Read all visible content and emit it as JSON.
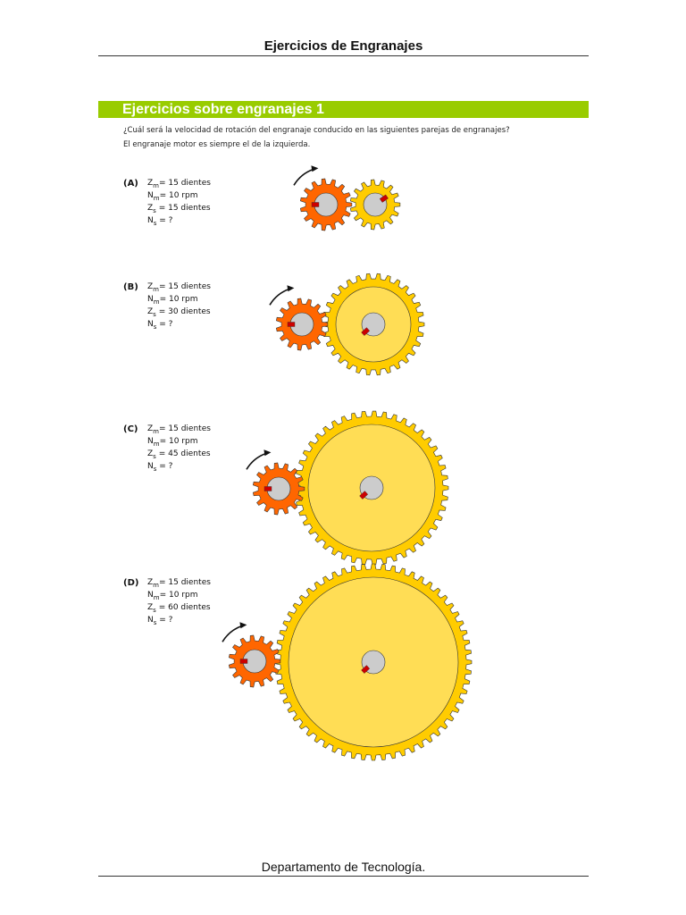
{
  "header": {
    "title": "Ejercicios de Engranajes"
  },
  "section": {
    "title": "Ejercicios sobre engranajes 1"
  },
  "question": [
    "¿Cuál será la velocidad de rotación del engranaje conducido en las siguientes parejas de engranajes?",
    "El engranaje motor es siempre el de la izquierda."
  ],
  "exercises": [
    {
      "label": "(A)",
      "zm": "= 15 dientes",
      "nm": "= 10 rpm",
      "zs": " = 15 dientes",
      "ns": " =  ?",
      "driver_teeth": 15,
      "driven_teeth": 15
    },
    {
      "label": "(B)",
      "zm": "= 15 dientes",
      "nm": "= 10 rpm",
      "zs": " = 30 dientes",
      "ns": " =  ?",
      "driver_teeth": 15,
      "driven_teeth": 30
    },
    {
      "label": "(C)",
      "zm": "= 15 dientes",
      "nm": "= 10 rpm",
      "zs": " = 45 dientes",
      "ns": " =  ?",
      "driver_teeth": 15,
      "driven_teeth": 45
    },
    {
      "label": "(D)",
      "zm": "= 15 dientes",
      "nm": "= 10 rpm",
      "zs": " = 60 dientes",
      "ns": " =  ?",
      "driver_teeth": 15,
      "driven_teeth": 60
    }
  ],
  "symbols": {
    "Z": "Z",
    "N": "N",
    "m": "m",
    "s": "s"
  },
  "colors": {
    "band": "#99cc00",
    "driver": "#ff6600",
    "driven": "#ffcc00",
    "driven_inner": "#ffdd55",
    "hub": "#cccccc",
    "key": "#cc0000"
  },
  "footer": {
    "text": "Departamento de Tecnología."
  }
}
